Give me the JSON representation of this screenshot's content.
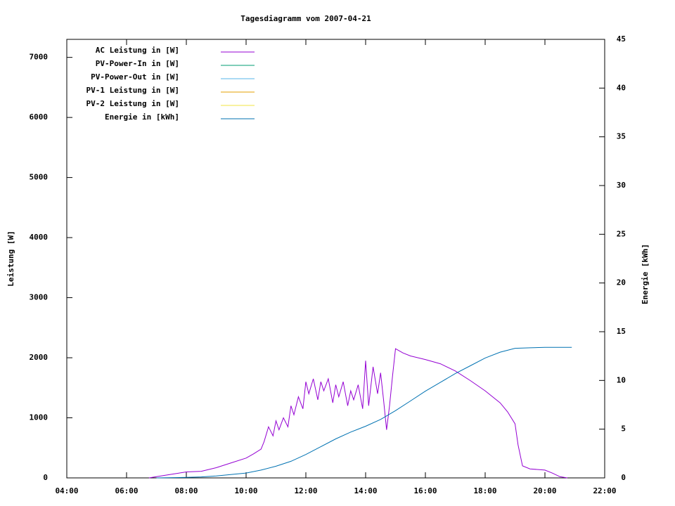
{
  "chart_data": {
    "type": "line",
    "title": "Tagesdiagramm vom 2007-04-21",
    "ylabel": "Leistung [W]",
    "y2label": "Energie [kWh]",
    "xlim": [
      4,
      22
    ],
    "xticks": [
      {
        "value": 4,
        "label": "04:00"
      },
      {
        "value": 6,
        "label": "06:00"
      },
      {
        "value": 8,
        "label": "08:00"
      },
      {
        "value": 10,
        "label": "10:00"
      },
      {
        "value": 12,
        "label": "12:00"
      },
      {
        "value": 14,
        "label": "14:00"
      },
      {
        "value": 16,
        "label": "16:00"
      },
      {
        "value": 18,
        "label": "18:00"
      },
      {
        "value": 20,
        "label": "20:00"
      },
      {
        "value": 22,
        "label": "22:00"
      }
    ],
    "ylim": [
      0,
      7300
    ],
    "yticks": [
      0,
      1000,
      2000,
      3000,
      4000,
      5000,
      6000,
      7000
    ],
    "y2lim": [
      0,
      45
    ],
    "y2ticks": [
      0,
      5,
      10,
      15,
      20,
      25,
      30,
      35,
      40,
      45
    ],
    "legend": "top-left",
    "series": [
      {
        "name": "AC Leistung in [W]",
        "color": "#9400d3",
        "x": [
          6.75,
          7,
          7.5,
          8,
          8.5,
          9,
          9.5,
          10,
          10.25,
          10.5,
          10.6,
          10.75,
          10.9,
          11,
          11.1,
          11.25,
          11.4,
          11.5,
          11.6,
          11.75,
          11.9,
          12,
          12.1,
          12.25,
          12.4,
          12.5,
          12.6,
          12.75,
          12.9,
          13,
          13.1,
          13.25,
          13.4,
          13.5,
          13.6,
          13.75,
          13.9,
          14,
          14.1,
          14.25,
          14.4,
          14.5,
          14.6,
          14.7,
          14.8,
          14.9,
          15,
          15.25,
          15.5,
          16,
          16.5,
          17,
          17.5,
          18,
          18.5,
          18.75,
          19,
          19.1,
          19.25,
          19.5,
          20,
          20.25,
          20.5,
          20.75
        ],
        "values": [
          0,
          20,
          60,
          100,
          110,
          170,
          250,
          330,
          400,
          480,
          600,
          850,
          700,
          950,
          800,
          1000,
          850,
          1200,
          1050,
          1350,
          1150,
          1600,
          1400,
          1650,
          1300,
          1600,
          1450,
          1650,
          1250,
          1550,
          1350,
          1600,
          1200,
          1450,
          1300,
          1550,
          1150,
          1950,
          1200,
          1850,
          1400,
          1750,
          1300,
          800,
          1200,
          1700,
          2150,
          2080,
          2030,
          1970,
          1900,
          1780,
          1620,
          1450,
          1250,
          1100,
          900,
          550,
          200,
          150,
          130,
          80,
          20,
          0
        ]
      },
      {
        "name": "PV-Power-In in [W]",
        "color": "#009e73",
        "x": [],
        "values": []
      },
      {
        "name": "PV-Power-Out in [W]",
        "color": "#56b4e9",
        "x": [],
        "values": []
      },
      {
        "name": "PV-1 Leistung in [W]",
        "color": "#e69f00",
        "x": [],
        "values": []
      },
      {
        "name": "PV-2 Leistung in [W]",
        "color": "#f0e442",
        "x": [],
        "values": []
      },
      {
        "name": "Energie in [kWh]",
        "color": "#0072b2",
        "axis": "y2",
        "x": [
          7,
          8,
          8.5,
          9,
          10,
          10.5,
          11,
          11.5,
          12,
          12.5,
          13,
          13.5,
          14,
          14.5,
          15,
          15.5,
          16,
          16.5,
          17,
          17.5,
          18,
          18.5,
          19,
          19.5,
          20,
          20.9
        ],
        "values": [
          0,
          0.05,
          0.1,
          0.2,
          0.5,
          0.8,
          1.2,
          1.7,
          2.4,
          3.2,
          4.0,
          4.7,
          5.3,
          6.0,
          6.9,
          7.9,
          8.9,
          9.8,
          10.7,
          11.5,
          12.3,
          12.9,
          13.3,
          13.35,
          13.4,
          13.4
        ]
      }
    ]
  }
}
